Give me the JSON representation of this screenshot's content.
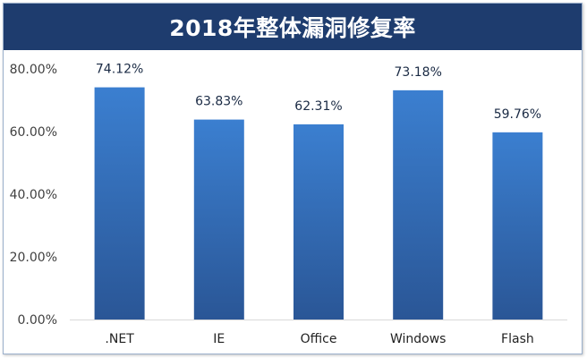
{
  "chart_data": {
    "type": "bar",
    "title": "2018年整体漏洞修复率",
    "xlabel": "",
    "ylabel": "",
    "categories": [
      ".NET",
      "IE",
      "Office",
      "Windows",
      "Flash"
    ],
    "values": [
      74.12,
      63.83,
      62.31,
      73.18,
      59.76
    ],
    "data_labels": [
      "74.12%",
      "63.83%",
      "62.31%",
      "73.18%",
      "59.76%"
    ],
    "yticks": [
      0,
      20,
      40,
      60,
      80
    ],
    "ytick_labels": [
      "0.00%",
      "20.00%",
      "40.00%",
      "60.00%",
      "80.00%"
    ],
    "ylim": [
      0,
      80
    ],
    "grid": false,
    "legend": "none",
    "colors": {
      "bar_top": "#3b7fd0",
      "bar_bottom": "#2a5696",
      "title_bg": "#1e3c6e"
    }
  }
}
